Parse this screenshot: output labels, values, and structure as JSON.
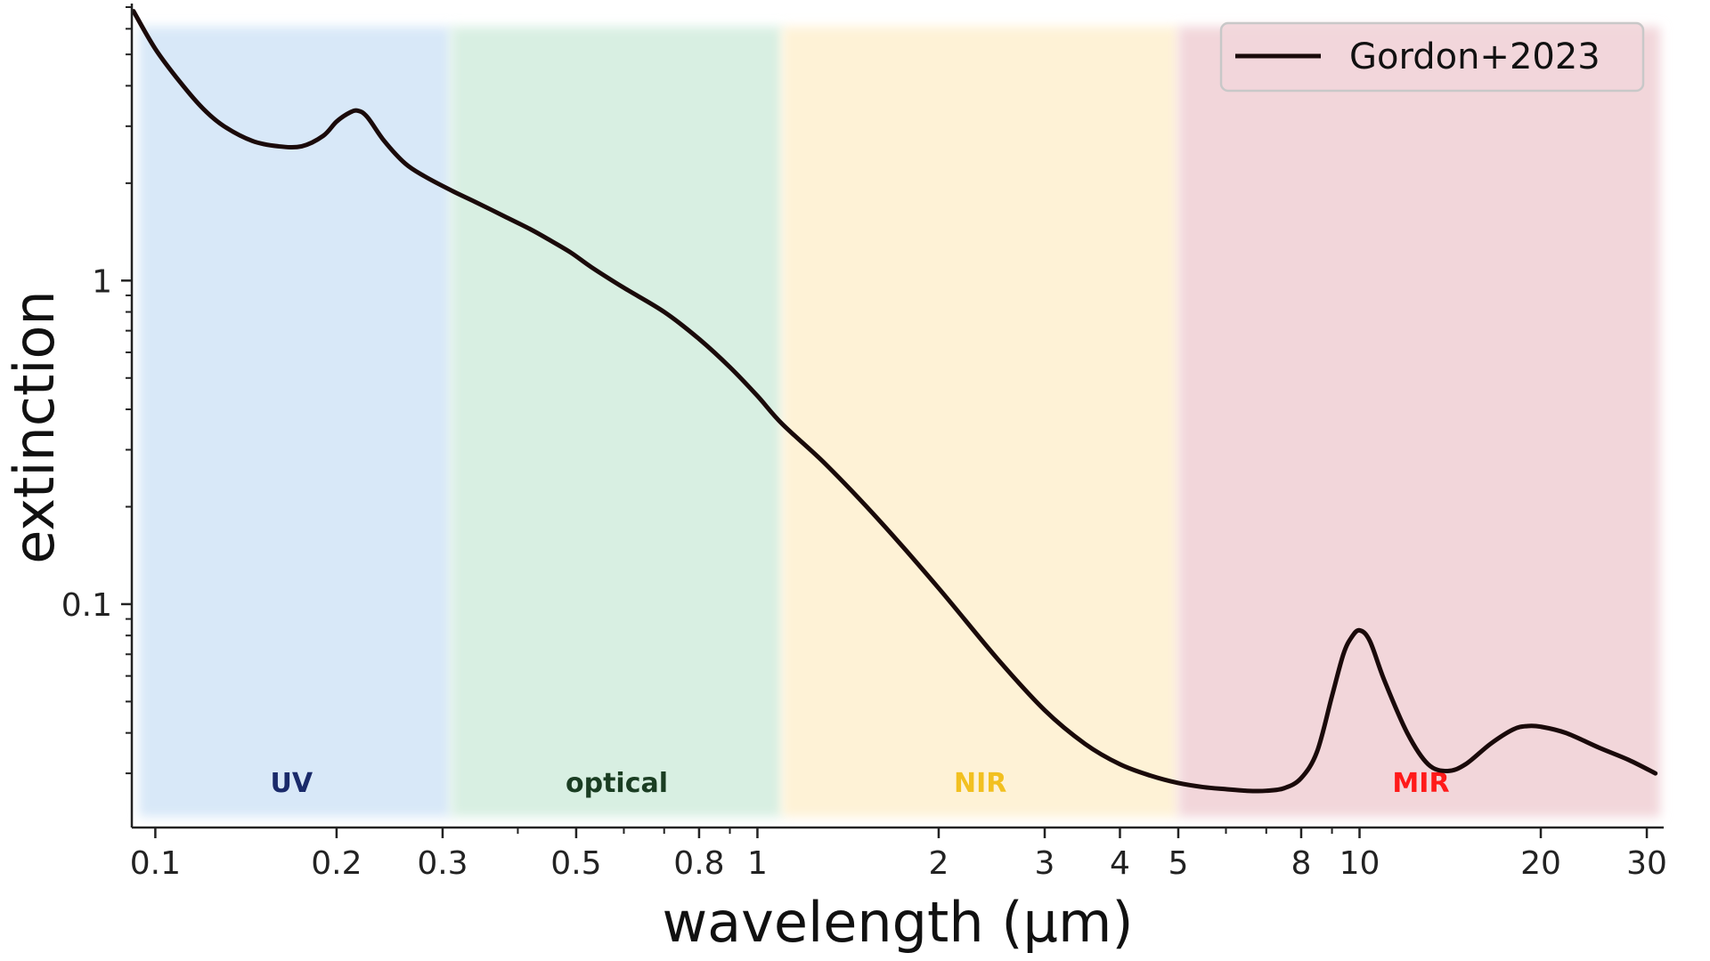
{
  "chart_data": {
    "type": "line",
    "title": "",
    "xlabel": "wavelength (μm)",
    "ylabel": "extinction",
    "xscale": "log",
    "yscale": "log",
    "xlim": [
      0.0914,
      32
    ],
    "ylim": [
      0.0204,
      7.18
    ],
    "grid": false,
    "legend_position": "top-right",
    "x_ticks": [
      {
        "value": 0.1,
        "label": "0.1"
      },
      {
        "value": 0.2,
        "label": "0.2"
      },
      {
        "value": 0.3,
        "label": "0.3"
      },
      {
        "value": 0.5,
        "label": "0.5"
      },
      {
        "value": 0.8,
        "label": "0.8"
      },
      {
        "value": 1,
        "label": "1"
      },
      {
        "value": 2,
        "label": "2"
      },
      {
        "value": 3,
        "label": "3"
      },
      {
        "value": 4,
        "label": "4"
      },
      {
        "value": 5,
        "label": "5"
      },
      {
        "value": 8,
        "label": "8"
      },
      {
        "value": 10,
        "label": "10"
      },
      {
        "value": 20,
        "label": "20"
      },
      {
        "value": 30,
        "label": "30"
      }
    ],
    "x_minor_ticks": [
      0.4,
      0.6,
      0.7,
      0.9,
      6,
      7,
      9
    ],
    "y_ticks": [
      {
        "value": 0.1,
        "label": "0.1"
      },
      {
        "value": 1,
        "label": "1"
      }
    ],
    "y_minor_ticks": [
      0.03,
      0.04,
      0.05,
      0.06,
      0.07,
      0.08,
      0.09,
      0.2,
      0.3,
      0.4,
      0.5,
      0.6,
      0.7,
      0.8,
      0.9,
      2,
      3,
      4,
      5,
      6,
      7
    ],
    "regions": [
      {
        "label": "UV",
        "x_start": 0.0914,
        "x_end": 0.31,
        "fill": "#d8e8f8",
        "text_color": "#1a2a6a"
      },
      {
        "label": "optical",
        "x_start": 0.31,
        "x_end": 1.1,
        "fill": "#d8efe2",
        "text_color": "#1a3d22"
      },
      {
        "label": "NIR",
        "x_start": 1.1,
        "x_end": 5.0,
        "fill": "#fef2d6",
        "text_color": "#f2c020"
      },
      {
        "label": "MIR",
        "x_start": 5.0,
        "x_end": 32,
        "fill": "#f2d6da",
        "text_color": "#ff1a1a"
      }
    ],
    "series": [
      {
        "name": "Gordon+2023",
        "color": "#1a0a0a",
        "x": [
          0.092,
          0.1,
          0.11,
          0.12,
          0.13,
          0.145,
          0.16,
          0.175,
          0.19,
          0.2,
          0.21,
          0.217,
          0.225,
          0.24,
          0.26,
          0.28,
          0.31,
          0.34,
          0.38,
          0.42,
          0.45,
          0.49,
          0.53,
          0.6,
          0.7,
          0.8,
          0.9,
          1.0,
          1.1,
          1.3,
          1.6,
          2.0,
          2.5,
          3.0,
          3.5,
          4.0,
          4.5,
          5.0,
          5.5,
          6.0,
          6.5,
          7.0,
          7.5,
          8.0,
          8.5,
          9.0,
          9.4,
          9.7,
          10.0,
          10.4,
          11.0,
          12.0,
          13.0,
          14.0,
          15.0,
          16.5,
          18.0,
          19.0,
          20.0,
          22.0,
          25.0,
          28.0,
          31.0
        ],
        "y": [
          6.8,
          5.2,
          4.1,
          3.4,
          3.0,
          2.7,
          2.6,
          2.6,
          2.8,
          3.1,
          3.3,
          3.35,
          3.2,
          2.7,
          2.3,
          2.1,
          1.9,
          1.75,
          1.58,
          1.44,
          1.34,
          1.22,
          1.1,
          0.95,
          0.8,
          0.66,
          0.54,
          0.44,
          0.36,
          0.27,
          0.18,
          0.112,
          0.068,
          0.047,
          0.037,
          0.032,
          0.0295,
          0.028,
          0.0272,
          0.0268,
          0.0265,
          0.0265,
          0.027,
          0.029,
          0.035,
          0.052,
          0.07,
          0.079,
          0.083,
          0.077,
          0.058,
          0.04,
          0.032,
          0.0305,
          0.032,
          0.037,
          0.041,
          0.042,
          0.0418,
          0.04,
          0.036,
          0.033,
          0.03
        ]
      }
    ]
  }
}
